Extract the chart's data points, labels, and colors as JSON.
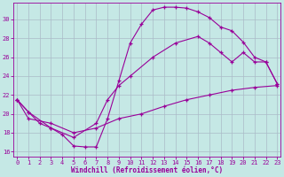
{
  "xlabel": "Windchill (Refroidissement éolien,°C)",
  "bg_color": "#c5e8e5",
  "line_color": "#990099",
  "grid_color": "#aabbc8",
  "xlim": [
    -0.3,
    23.3
  ],
  "ylim": [
    15.5,
    31.8
  ],
  "yticks": [
    16,
    18,
    20,
    22,
    24,
    26,
    28,
    30
  ],
  "xticks": [
    0,
    1,
    2,
    3,
    4,
    5,
    6,
    7,
    8,
    9,
    10,
    11,
    12,
    13,
    14,
    15,
    16,
    17,
    18,
    19,
    20,
    21,
    22,
    23
  ],
  "curve1_x": [
    0,
    1,
    2,
    3,
    4,
    5,
    6,
    7,
    8,
    9,
    10,
    11,
    12,
    13,
    14,
    15,
    16,
    17,
    18,
    19,
    20,
    21,
    22,
    23
  ],
  "curve1_y": [
    21.5,
    20.2,
    19.0,
    18.5,
    17.8,
    16.6,
    16.5,
    16.5,
    19.5,
    23.5,
    27.5,
    29.5,
    31.0,
    31.3,
    31.3,
    31.2,
    30.8,
    30.2,
    29.2,
    28.8,
    27.6,
    26.0,
    25.5,
    23.2
  ],
  "curve2_x": [
    0,
    1,
    3,
    5,
    7,
    8,
    9,
    10,
    12,
    14,
    16,
    17,
    18,
    19,
    20,
    21,
    22,
    23
  ],
  "curve2_y": [
    21.5,
    20.2,
    18.5,
    17.5,
    19.0,
    21.5,
    23.0,
    24.0,
    26.0,
    27.5,
    28.2,
    27.5,
    26.5,
    25.5,
    26.5,
    25.5,
    25.5,
    23.2
  ],
  "curve3_x": [
    0,
    1,
    3,
    5,
    7,
    9,
    11,
    13,
    15,
    17,
    19,
    21,
    23
  ],
  "curve3_y": [
    21.5,
    19.5,
    19.0,
    18.0,
    18.5,
    19.5,
    20.0,
    20.8,
    21.5,
    22.0,
    22.5,
    22.8,
    23.0
  ]
}
